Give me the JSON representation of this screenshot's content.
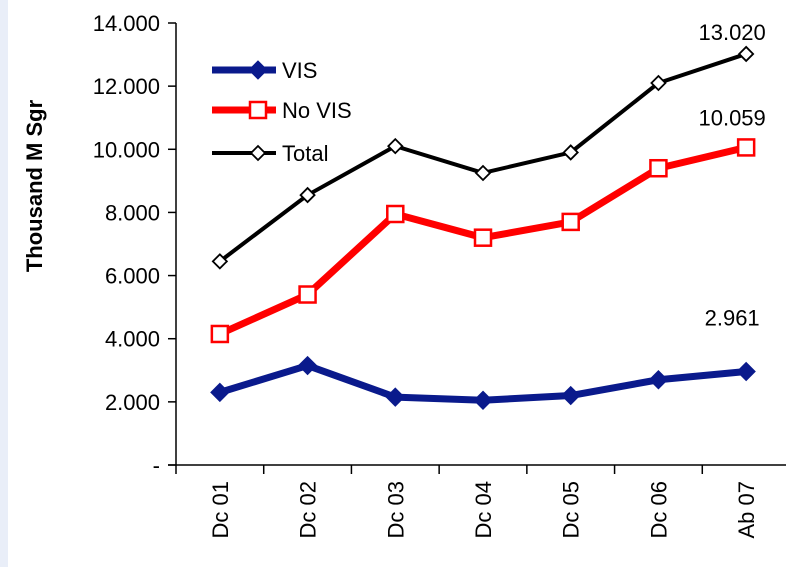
{
  "chart_data": {
    "type": "line",
    "title": "",
    "xlabel": "",
    "ylabel": "Thousand M Sgr",
    "ylim": [
      0,
      14000
    ],
    "yticks": [
      0,
      2000,
      4000,
      6000,
      8000,
      10000,
      12000,
      14000
    ],
    "ytick_labels": [
      "-",
      "2.000",
      "4.000",
      "6.000",
      "8.000",
      "10.000",
      "12.000",
      "14.000"
    ],
    "categories": [
      "Dc 01",
      "Dc 02",
      "Dc 03",
      "Dc 04",
      "Dc 05",
      "Dc 06",
      "Ab 07"
    ],
    "grid": false,
    "legend_position": "top-left",
    "series": [
      {
        "name": "VIS",
        "color": "#0a1a8c",
        "marker": "filled-diamond",
        "values": [
          2300,
          3150,
          2150,
          2050,
          2200,
          2700,
          2961
        ]
      },
      {
        "name": "No VIS",
        "color": "#ff0000",
        "marker": "hollow-square",
        "values": [
          4150,
          5400,
          7950,
          7200,
          7700,
          9400,
          10059
        ]
      },
      {
        "name": "Total",
        "color": "#000000",
        "marker": "hollow-diamond",
        "values": [
          6450,
          8550,
          10100,
          9250,
          9900,
          12100,
          13020
        ]
      }
    ],
    "annotations": [
      {
        "series": "Total",
        "index": 6,
        "text": "13.020"
      },
      {
        "series": "No VIS",
        "index": 6,
        "text": "10.059"
      },
      {
        "series": "VIS",
        "index": 6,
        "text": "2.961"
      }
    ]
  }
}
